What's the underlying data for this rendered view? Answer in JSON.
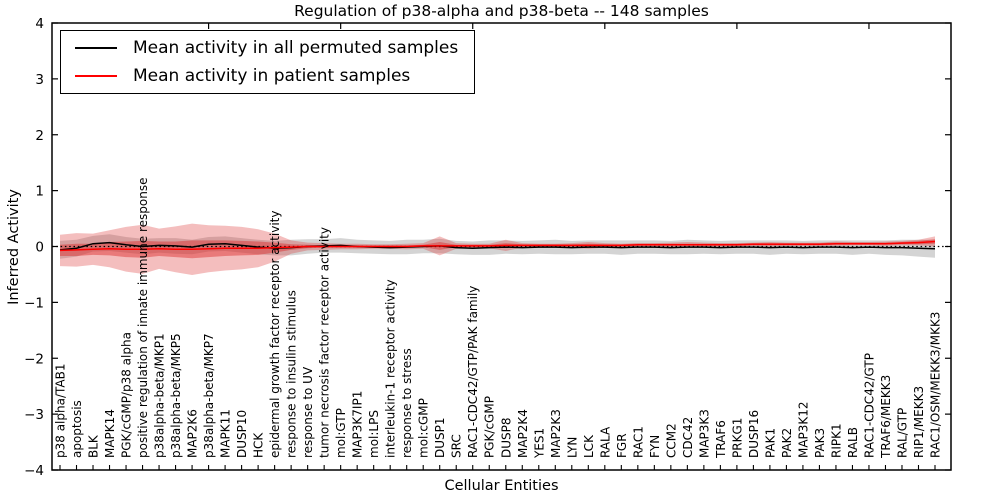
{
  "chart_data": {
    "type": "line",
    "title": "Regulation of p38-alpha and p38-beta -- 148 samples",
    "xlabel": "Cellular Entities",
    "ylabel": "Inferred Activity",
    "ylim": [
      -4,
      4
    ],
    "xlim_points": 54,
    "grid": false,
    "zero_line": {
      "style": "dotted",
      "color": "#000000",
      "y": 0
    },
    "legend_position": "upper left",
    "yticks": [
      4,
      3,
      2,
      1,
      0,
      -1,
      -2,
      -3,
      -4
    ],
    "ytick_labels": [
      "4",
      "3",
      "2",
      "1",
      "0",
      "−1",
      "−2",
      "−3",
      "−4"
    ],
    "top_tick_indices": [
      9,
      17,
      25,
      33,
      41,
      49
    ],
    "categories": [
      "p38 alpha/TAB1",
      "apoptosis",
      "BLK",
      "MAPK14",
      "PGK/cGMP/p38 alpha",
      "positive regulation of innate immune response",
      "p38alpha-beta/MKP1",
      "p38alpha-beta/MKP5",
      "MAP2K6",
      "p38alpha-beta/MKP7",
      "MAPK11",
      "DUSP10",
      "HCK",
      "epidermal growth factor receptor activity",
      "response to insulin stimulus",
      "response to UV",
      "tumor necrosis factor receptor activity",
      "mol:GTP",
      "MAP3K7IP1",
      "mol:LPS",
      "interleukin-1 receptor activity",
      "response to stress",
      "mol:cGMP",
      "DUSP1",
      "SRC",
      "RAC1-CDC42/GTP/PAK family",
      "PGK/cGMP",
      "DUSP8",
      "MAP2K4",
      "YES1",
      "MAP2K3",
      "LYN",
      "LCK",
      "RALA",
      "FGR",
      "RAC1",
      "FYN",
      "CCM2",
      "CDC42",
      "MAP3K3",
      "TRAF6",
      "PRKG1",
      "DUSP16",
      "PAK1",
      "PAK2",
      "MAP3K12",
      "PAK3",
      "RIPK1",
      "RALB",
      "RAC1-CDC42/GTP",
      "TRAF6/MEKK3",
      "RAL/GTP",
      "RIP1/MEKK3",
      "RAC1/OSM/MEKK3/MKK3"
    ],
    "series": [
      {
        "name": "Mean activity in all permuted samples",
        "color": "#000000",
        "values": [
          -0.06,
          -0.03,
          0.05,
          0.07,
          0.03,
          0.0,
          0.02,
          0.01,
          -0.01,
          0.04,
          0.05,
          0.02,
          -0.01,
          -0.03,
          -0.02,
          0.0,
          0.01,
          0.02,
          0.0,
          -0.01,
          -0.02,
          -0.01,
          0.0,
          0.01,
          -0.02,
          -0.03,
          -0.02,
          -0.01,
          -0.02,
          -0.01,
          -0.01,
          -0.02,
          -0.01,
          -0.01,
          -0.02,
          -0.01,
          -0.01,
          -0.02,
          -0.01,
          -0.01,
          -0.02,
          -0.01,
          -0.01,
          -0.02,
          -0.01,
          -0.02,
          -0.01,
          -0.01,
          -0.02,
          -0.01,
          -0.02,
          -0.02,
          -0.03,
          -0.04
        ]
      },
      {
        "name": "Mean activity in patient samples",
        "color": "#ff0000",
        "values": [
          -0.07,
          -0.06,
          -0.05,
          -0.04,
          -0.05,
          -0.05,
          -0.04,
          -0.05,
          -0.05,
          -0.04,
          -0.03,
          -0.03,
          -0.03,
          -0.02,
          -0.01,
          0.0,
          0.0,
          0.0,
          0.0,
          0.0,
          0.0,
          0.0,
          0.01,
          0.01,
          0.01,
          0.01,
          0.01,
          0.02,
          0.02,
          0.02,
          0.02,
          0.02,
          0.02,
          0.02,
          0.02,
          0.03,
          0.03,
          0.03,
          0.03,
          0.03,
          0.03,
          0.03,
          0.04,
          0.04,
          0.04,
          0.04,
          0.04,
          0.05,
          0.05,
          0.05,
          0.05,
          0.06,
          0.07,
          0.09
        ]
      }
    ],
    "bands": [
      {
        "name": "permuted-samples-std",
        "series": 0,
        "color": "rgba(120,120,120,0.32)",
        "half_widths": [
          0.16,
          0.15,
          0.14,
          0.15,
          0.14,
          0.14,
          0.13,
          0.14,
          0.13,
          0.13,
          0.13,
          0.13,
          0.13,
          0.13,
          0.14,
          0.13,
          0.12,
          0.13,
          0.12,
          0.12,
          0.12,
          0.13,
          0.12,
          0.13,
          0.12,
          0.12,
          0.13,
          0.12,
          0.12,
          0.12,
          0.13,
          0.12,
          0.12,
          0.12,
          0.13,
          0.12,
          0.12,
          0.12,
          0.13,
          0.12,
          0.12,
          0.12,
          0.12,
          0.13,
          0.12,
          0.12,
          0.12,
          0.12,
          0.13,
          0.12,
          0.13,
          0.14,
          0.15,
          0.16
        ]
      },
      {
        "name": "patient-samples-std-outer",
        "series": 1,
        "color": "rgba(220,40,40,0.30)",
        "half_widths": [
          0.28,
          0.3,
          0.28,
          0.33,
          0.4,
          0.44,
          0.36,
          0.41,
          0.46,
          0.42,
          0.4,
          0.38,
          0.34,
          0.25,
          0.12,
          0.07,
          0.06,
          0.05,
          0.05,
          0.04,
          0.04,
          0.05,
          0.05,
          0.17,
          0.05,
          0.04,
          0.04,
          0.1,
          0.04,
          0.03,
          0.03,
          0.04,
          0.06,
          0.04,
          0.03,
          0.03,
          0.03,
          0.04,
          0.05,
          0.04,
          0.03,
          0.03,
          0.03,
          0.04,
          0.03,
          0.03,
          0.03,
          0.04,
          0.03,
          0.03,
          0.04,
          0.04,
          0.05,
          0.09
        ]
      },
      {
        "name": "patient-samples-std-inner",
        "series": 1,
        "color": "rgba(220,40,40,0.45)",
        "half_widths": [
          0.1,
          0.11,
          0.1,
          0.12,
          0.14,
          0.15,
          0.13,
          0.14,
          0.16,
          0.15,
          0.14,
          0.13,
          0.12,
          0.09,
          0.05,
          0.03,
          0.02,
          0.02,
          0.02,
          0.02,
          0.02,
          0.02,
          0.02,
          0.07,
          0.02,
          0.02,
          0.02,
          0.04,
          0.02,
          0.02,
          0.02,
          0.02,
          0.03,
          0.02,
          0.02,
          0.02,
          0.02,
          0.02,
          0.02,
          0.02,
          0.02,
          0.02,
          0.02,
          0.02,
          0.02,
          0.02,
          0.02,
          0.02,
          0.02,
          0.02,
          0.02,
          0.02,
          0.03,
          0.04
        ]
      }
    ],
    "legend": {
      "items": [
        {
          "label": "Mean activity in all permuted samples",
          "color": "#000000"
        },
        {
          "label": "Mean activity in patient samples",
          "color": "#ff0000"
        }
      ]
    }
  }
}
